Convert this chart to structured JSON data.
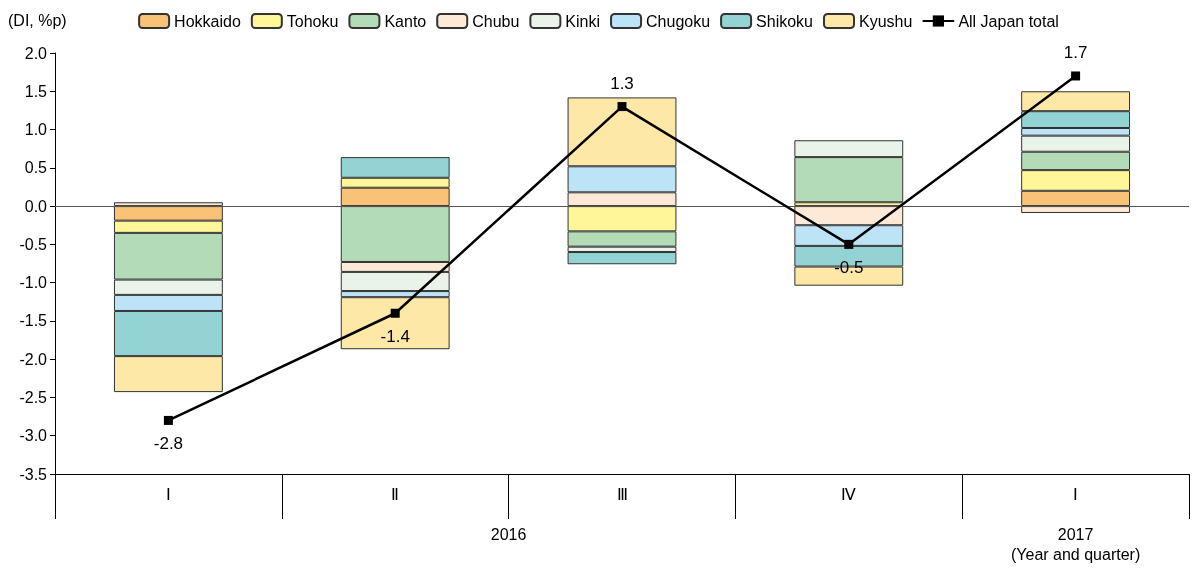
{
  "chart_data": {
    "type": "bar",
    "stacked": true,
    "ylabel": "(DI, %p)",
    "xlabel": "(Year and quarter)",
    "categories": [
      "Ⅰ",
      "Ⅱ",
      "Ⅲ",
      "Ⅳ",
      "Ⅰ"
    ],
    "annotations": [
      "2016",
      "2017"
    ],
    "ylim": [
      -3.5,
      2.0
    ],
    "yticks": [
      {
        "value": -3.5,
        "label": "-3.5"
      },
      {
        "value": -3,
        "label": "-3.0"
      },
      {
        "value": -2.5,
        "label": "-2.5"
      },
      {
        "value": -2,
        "label": "-2.0"
      },
      {
        "value": -1.5,
        "label": "-1.5"
      },
      {
        "value": -1,
        "label": "-1.0"
      },
      {
        "value": -0.5,
        "label": "-0.5"
      },
      {
        "value": 0,
        "label": "0.0"
      },
      {
        "value": 0.5,
        "label": "0.5"
      },
      {
        "value": 1,
        "label": "1.0"
      },
      {
        "value": 1.5,
        "label": "1.5"
      },
      {
        "value": 2,
        "label": "2.0"
      }
    ],
    "grid": false,
    "legend": "top",
    "ref_lines": [
      {
        "axis": "y",
        "value": 0,
        "color": "#555555"
      }
    ],
    "series": [
      {
        "name": "Hokkaido",
        "color": "#f9c276",
        "values": [
          -0.19,
          0.24,
          null,
          null,
          0.2
        ]
      },
      {
        "name": "Tohoku",
        "color": "#fff599",
        "values": [
          -0.16,
          0.13,
          -0.33,
          0.05,
          0.27
        ]
      },
      {
        "name": "Kanto",
        "color": "#b3dbb7",
        "values": [
          -0.61,
          -0.73,
          -0.2,
          0.59,
          0.24
        ]
      },
      {
        "name": "Chubu",
        "color": "#fde9d6",
        "values": [
          0.05,
          -0.13,
          0.18,
          -0.25,
          -0.09
        ]
      },
      {
        "name": "Kinki",
        "color": "#eaf3ea",
        "values": [
          -0.2,
          -0.25,
          -0.07,
          0.22,
          0.21
        ]
      },
      {
        "name": "Chugoku",
        "color": "#bde3f7",
        "values": [
          -0.21,
          -0.08,
          0.34,
          -0.27,
          0.1
        ]
      },
      {
        "name": "Shikoku",
        "color": "#94d3d3",
        "values": [
          -0.59,
          0.27,
          -0.16,
          -0.27,
          0.22
        ]
      },
      {
        "name": "Kyushu",
        "color": "#fee8a8",
        "values": [
          -0.47,
          -0.68,
          0.9,
          -0.25,
          0.26
        ]
      },
      {
        "name": "All Japan total",
        "type": "line",
        "color": "#000000",
        "marker": "square",
        "values": [
          -2.8,
          -1.4,
          1.3,
          -0.5,
          1.7
        ],
        "value_labels": [
          "-2.8",
          "-1.4",
          "1.3",
          "-0.5",
          "1.7"
        ]
      }
    ]
  }
}
